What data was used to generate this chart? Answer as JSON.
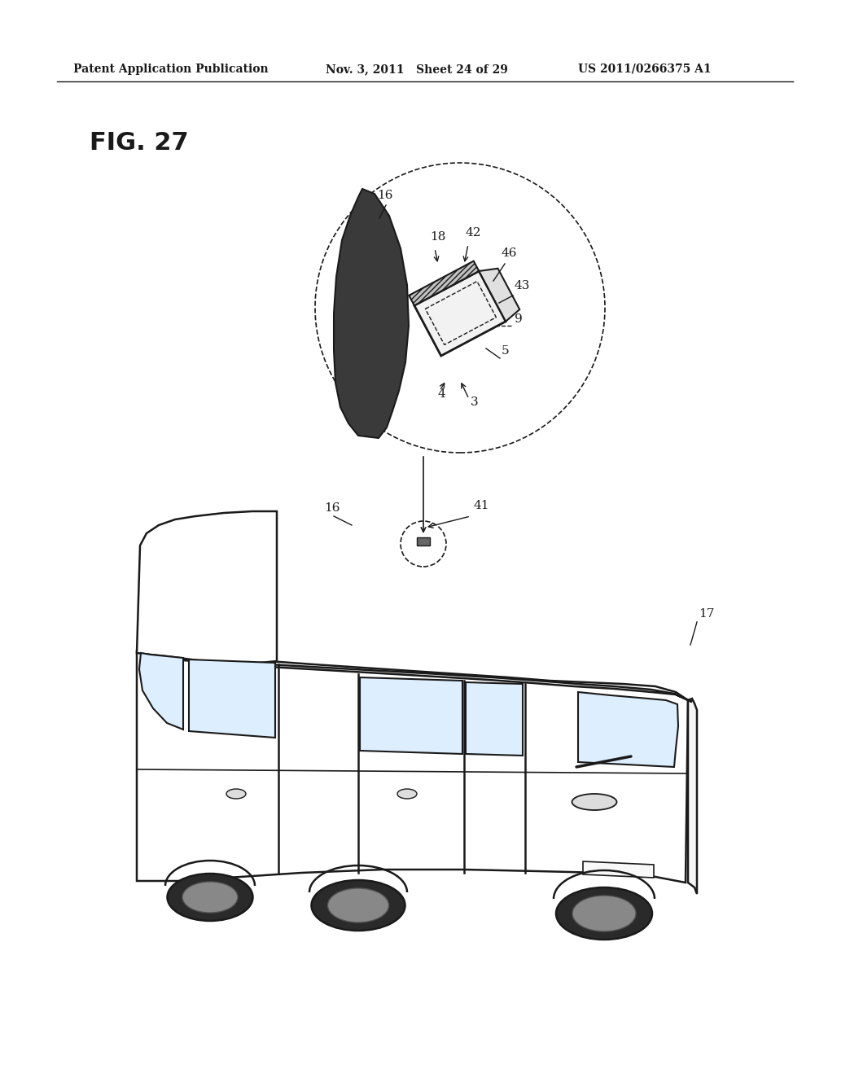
{
  "background_color": "#ffffff",
  "header_left": "Patent Application Publication",
  "header_mid": "Nov. 3, 2011   Sheet 24 of 29",
  "header_right": "US 2011/0266375 A1",
  "fig_label": "FIG. 27",
  "labels": {
    "16_top": "16",
    "18": "18",
    "42": "42",
    "46": "46",
    "43": "43",
    "9": "9",
    "5": "5",
    "4": "4",
    "3": "3",
    "16_car": "16",
    "41": "41",
    "17": "17"
  }
}
